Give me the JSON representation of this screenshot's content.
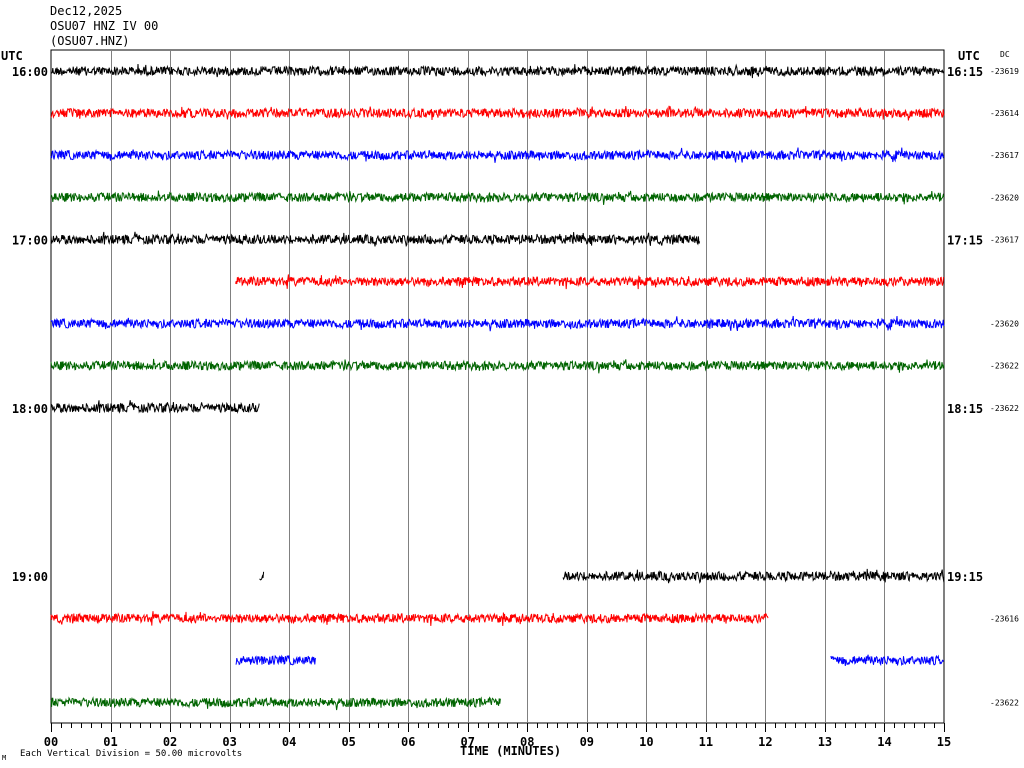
{
  "header": {
    "date": "Dec12,2025",
    "station_line": "OSU07 HNZ IV 00",
    "station_code": "(OSU07.HNZ)"
  },
  "utc_left": "UTC",
  "utc_right": "UTC",
  "dc_label": "DC",
  "footnote_mark": "M",
  "footnote": "Each Vertical Division =   50.00 microvolts",
  "colors": {
    "black": "#000000",
    "red": "#ff0000",
    "blue": "#0000ff",
    "green": "#006400",
    "grid": "#808080"
  },
  "chart_data": {
    "type": "line",
    "title": "",
    "xlabel": "TIME (MINUTES)",
    "xlim": [
      0,
      15
    ],
    "x_ticks": [
      "00",
      "01",
      "02",
      "03",
      "04",
      "05",
      "06",
      "07",
      "08",
      "09",
      "10",
      "11",
      "12",
      "13",
      "14",
      "15"
    ],
    "color_cycle": [
      "black",
      "red",
      "blue",
      "green"
    ],
    "rows": [
      {
        "start_label": "16:00",
        "end_label": "16:15",
        "dc": "-23619",
        "segments": [
          [
            0,
            15
          ]
        ]
      },
      {
        "start_label": "",
        "end_label": "",
        "dc": "-23614",
        "segments": [
          [
            0,
            15
          ]
        ]
      },
      {
        "start_label": "",
        "end_label": "",
        "dc": "-23617",
        "segments": [
          [
            0,
            15
          ]
        ]
      },
      {
        "start_label": "",
        "end_label": "",
        "dc": "-23620",
        "segments": [
          [
            0,
            15
          ]
        ]
      },
      {
        "start_label": "17:00",
        "end_label": "17:15",
        "dc": "-23617",
        "segments": [
          [
            0,
            10.9
          ]
        ]
      },
      {
        "start_label": "",
        "end_label": "",
        "dc": "",
        "segments": [
          [
            3.1,
            15
          ]
        ]
      },
      {
        "start_label": "",
        "end_label": "",
        "dc": "-23620",
        "segments": [
          [
            0,
            15
          ]
        ]
      },
      {
        "start_label": "",
        "end_label": "",
        "dc": "-23622",
        "segments": [
          [
            0,
            15
          ]
        ]
      },
      {
        "start_label": "18:00",
        "end_label": "18:15",
        "dc": "-23622",
        "segments": [
          [
            0,
            3.5
          ]
        ]
      },
      {
        "start_label": "",
        "end_label": "",
        "dc": "",
        "segments": []
      },
      {
        "start_label": "",
        "end_label": "",
        "dc": "",
        "segments": []
      },
      {
        "start_label": "",
        "end_label": "",
        "dc": "",
        "segments": []
      },
      {
        "start_label": "19:00",
        "end_label": "19:15",
        "dc": "",
        "segments": [
          [
            3.5,
            3.58
          ],
          [
            8.6,
            15
          ]
        ]
      },
      {
        "start_label": "",
        "end_label": "",
        "dc": "-23616",
        "segments": [
          [
            0,
            12.05
          ]
        ]
      },
      {
        "start_label": "",
        "end_label": "",
        "dc": "",
        "segments": [
          [
            3.1,
            4.45
          ],
          [
            13.1,
            15
          ]
        ]
      },
      {
        "start_label": "",
        "end_label": "",
        "dc": "-23622",
        "segments": [
          [
            0,
            7.55
          ]
        ]
      }
    ]
  }
}
